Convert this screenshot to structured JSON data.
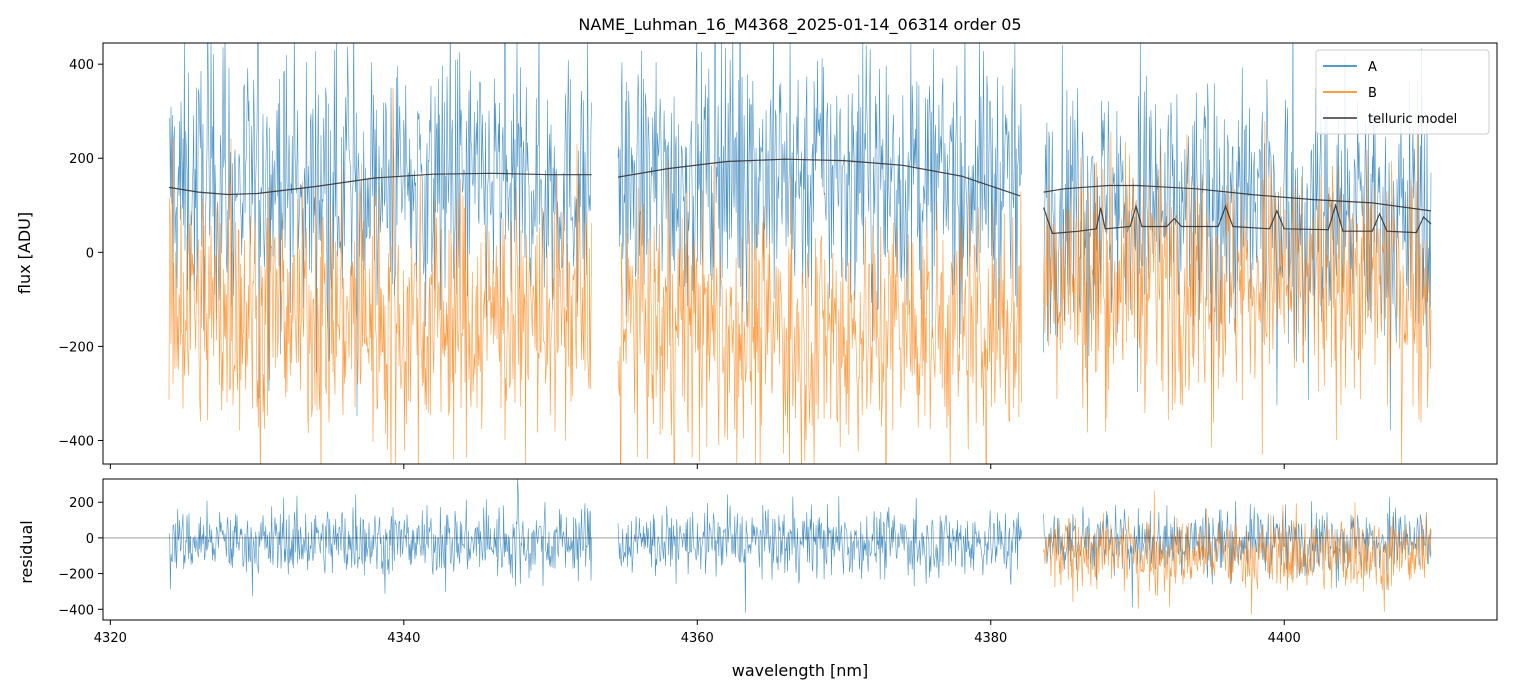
{
  "chart_data": [
    {
      "type": "line",
      "panel": "top",
      "title": "NAME_Luhman_16_M4368_2025-01-14_06314  order 05",
      "ylabel": "flux [ADU]",
      "xlabel": "",
      "xlim": [
        4319.5,
        4414.5
      ],
      "ylim": [
        -450,
        445
      ],
      "yticks": [
        -400,
        -200,
        0,
        200,
        400
      ],
      "yticklabels": [
        "−400",
        "−200",
        "0",
        "200",
        "400"
      ],
      "xticks": [
        4320,
        4340,
        4360,
        4380,
        4400
      ],
      "grid": false,
      "legend": "top-right",
      "segments": [
        [
          4324.0,
          4352.8
        ],
        [
          4354.6,
          4382.1
        ],
        [
          4383.6,
          4410.0
        ]
      ],
      "series": [
        {
          "name": "A",
          "color": "#1f77b4",
          "style": "noisy",
          "mean": [
            [
              4324,
              140
            ],
            [
              4340,
              145
            ],
            [
              4352.8,
              140
            ],
            [
              4354.6,
              150
            ],
            [
              4366,
              170
            ],
            [
              4382,
              140
            ],
            [
              4383.6,
              110
            ],
            [
              4395,
              90
            ],
            [
              4410,
              70
            ]
          ],
          "spread": 140
        },
        {
          "name": "B",
          "color": "#ff7f0e",
          "style": "noisy",
          "mean": [
            [
              4324,
              -110
            ],
            [
              4340,
              -140
            ],
            [
              4352.8,
              -130
            ],
            [
              4354.6,
              -140
            ],
            [
              4366,
              -170
            ],
            [
              4382,
              -150
            ],
            [
              4383.6,
              -50
            ],
            [
              4395,
              -60
            ],
            [
              4410,
              -70
            ]
          ],
          "spread": 130
        },
        {
          "name": "telluric model",
          "color": "#333333",
          "style": "smooth",
          "curve": [
            [
              4324.0,
              138
            ],
            [
              4326.0,
              128
            ],
            [
              4328.0,
              123
            ],
            [
              4330.0,
              125
            ],
            [
              4334.0,
              140
            ],
            [
              4338.0,
              158
            ],
            [
              4342.0,
              166
            ],
            [
              4346.0,
              168
            ],
            [
              4350.0,
              165
            ],
            [
              4352.8,
              165
            ]
          ],
          "curve2": [
            [
              4354.6,
              160
            ],
            [
              4358.0,
              178
            ],
            [
              4362.0,
              193
            ],
            [
              4366.0,
              198
            ],
            [
              4370.0,
              195
            ],
            [
              4374.0,
              185
            ],
            [
              4378.0,
              162
            ],
            [
              4382.0,
              120
            ]
          ],
          "curve3": [
            [
              4383.6,
              128
            ],
            [
              4385.0,
              135
            ],
            [
              4388.0,
              142
            ],
            [
              4390.0,
              142
            ],
            [
              4394.0,
              135
            ],
            [
              4398.0,
              122
            ],
            [
              4402.0,
              112
            ],
            [
              4406.0,
              105
            ],
            [
              4410.0,
              88
            ]
          ],
          "lower": [
            [
              4383.6,
              95
            ],
            [
              4384.2,
              40
            ],
            [
              4386.0,
              45
            ],
            [
              4387.2,
              50
            ],
            [
              4387.5,
              95
            ],
            [
              4387.8,
              50
            ],
            [
              4389.5,
              55
            ],
            [
              4389.9,
              98
            ],
            [
              4390.3,
              55
            ],
            [
              4392.0,
              55
            ],
            [
              4392.5,
              72
            ],
            [
              4393.0,
              55
            ],
            [
              4395.5,
              55
            ],
            [
              4396.0,
              98
            ],
            [
              4396.5,
              55
            ],
            [
              4399.0,
              50
            ],
            [
              4399.5,
              88
            ],
            [
              4400.0,
              50
            ],
            [
              4403.0,
              48
            ],
            [
              4403.5,
              100
            ],
            [
              4404.0,
              45
            ],
            [
              4406.0,
              45
            ],
            [
              4406.5,
              82
            ],
            [
              4407.0,
              45
            ],
            [
              4409.0,
              42
            ],
            [
              4409.5,
              75
            ],
            [
              4410.0,
              60
            ]
          ]
        }
      ]
    },
    {
      "type": "line",
      "panel": "bottom",
      "ylabel": "residual",
      "xlabel": "wavelength [nm]",
      "xlim": [
        4319.5,
        4414.5
      ],
      "ylim": [
        -460,
        330
      ],
      "yticks": [
        -400,
        -200,
        0,
        200
      ],
      "yticklabels": [
        "−400",
        "−200",
        "0",
        "200"
      ],
      "xticks": [
        4320,
        4340,
        4360,
        4380,
        4400
      ],
      "xticklabels": [
        "4320",
        "4340",
        "4360",
        "4380",
        "4400"
      ],
      "zero_line": 0,
      "grid": false,
      "series": [
        {
          "name": "A",
          "color": "#1f77b4",
          "segments": [
            [
              4324.0,
              4352.8
            ],
            [
              4354.6,
              4382.1
            ],
            [
              4383.6,
              4410.0
            ]
          ],
          "mean": -20,
          "spread": 95
        },
        {
          "name": "B",
          "color": "#ff7f0e",
          "segments": [
            [
              4383.6,
              4410.0
            ]
          ],
          "mean": -90,
          "spread": 105
        }
      ]
    }
  ]
}
